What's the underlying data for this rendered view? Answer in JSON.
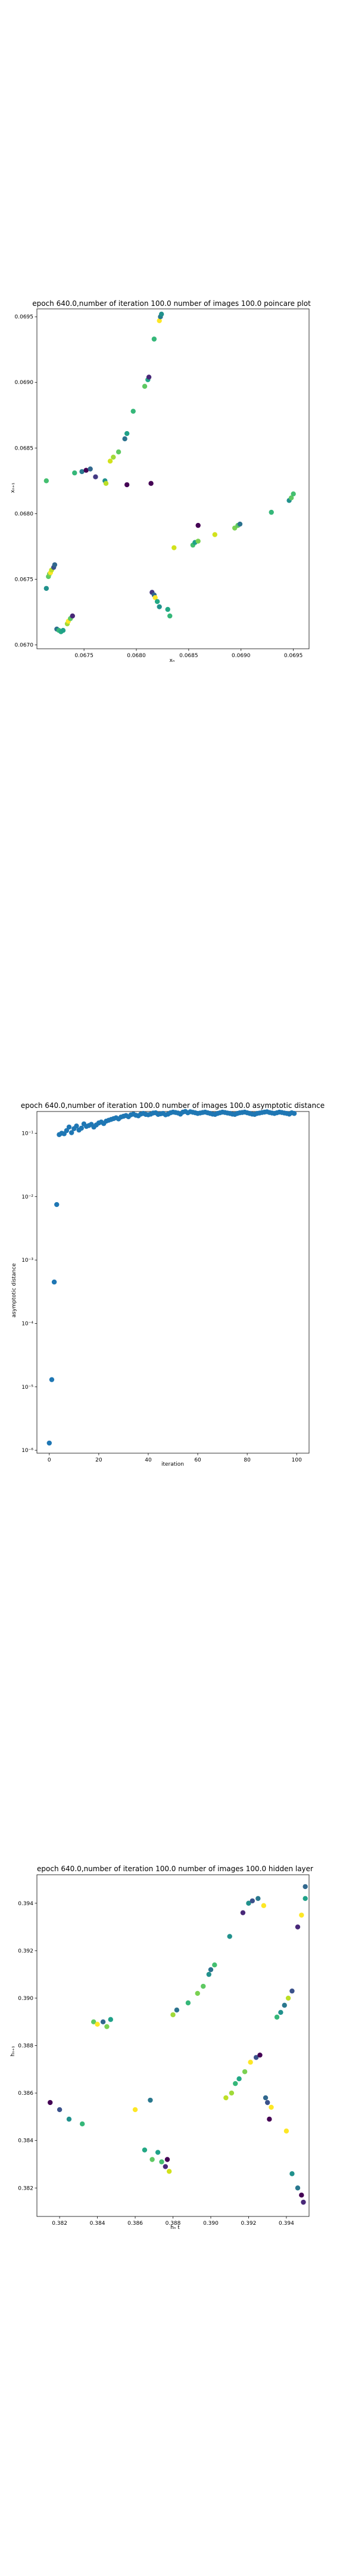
{
  "chart_data": [
    {
      "type": "scatter",
      "title": "epoch 640.0,number of iteration 100.0 number of images 100.0 poincare plot",
      "xlabel": "xₙ",
      "ylabel": "xₙ₊₁",
      "xlim": [
        0.06705,
        0.06965
      ],
      "ylim": [
        0.06697,
        0.06956
      ],
      "xticks": [
        {
          "v": 0.0675,
          "label": "0.0675"
        },
        {
          "v": 0.068,
          "label": "0.0680"
        },
        {
          "v": 0.0685,
          "label": "0.0685"
        },
        {
          "v": 0.069,
          "label": "0.0690"
        },
        {
          "v": 0.0695,
          "label": "0.0695"
        }
      ],
      "yticks": [
        {
          "v": 0.067,
          "label": "0.0670"
        },
        {
          "v": 0.0675,
          "label": "0.0675"
        },
        {
          "v": 0.068,
          "label": "0.0680"
        },
        {
          "v": 0.0685,
          "label": "0.0685"
        },
        {
          "v": 0.069,
          "label": "0.0690"
        },
        {
          "v": 0.0695,
          "label": "0.0695"
        }
      ],
      "points": [
        {
          "x": 0.06714,
          "y": 0.06825,
          "c": "#44bf70"
        },
        {
          "x": 0.06714,
          "y": 0.06743,
          "c": "#21918c"
        },
        {
          "x": 0.06716,
          "y": 0.06752,
          "c": "#5ec962"
        },
        {
          "x": 0.06717,
          "y": 0.06754,
          "c": "#7ad151"
        },
        {
          "x": 0.06718,
          "y": 0.06755,
          "c": "#fde725"
        },
        {
          "x": 0.06719,
          "y": 0.06757,
          "c": "#bddf26"
        },
        {
          "x": 0.06721,
          "y": 0.06759,
          "c": "#3b528b"
        },
        {
          "x": 0.06722,
          "y": 0.06761,
          "c": "#31688e"
        },
        {
          "x": 0.06724,
          "y": 0.06712,
          "c": "#2c728e"
        },
        {
          "x": 0.06726,
          "y": 0.06711,
          "c": "#35b779"
        },
        {
          "x": 0.06728,
          "y": 0.0671,
          "c": "#22a884"
        },
        {
          "x": 0.0673,
          "y": 0.06711,
          "c": "#1fa188"
        },
        {
          "x": 0.06734,
          "y": 0.06716,
          "c": "#a0da39"
        },
        {
          "x": 0.06735,
          "y": 0.06718,
          "c": "#fde725"
        },
        {
          "x": 0.06737,
          "y": 0.0672,
          "c": "#5ec962"
        },
        {
          "x": 0.06739,
          "y": 0.06722,
          "c": "#482878"
        },
        {
          "x": 0.06741,
          "y": 0.06831,
          "c": "#35b779"
        },
        {
          "x": 0.06748,
          "y": 0.06832,
          "c": "#2a788e"
        },
        {
          "x": 0.06752,
          "y": 0.06833,
          "c": "#440154"
        },
        {
          "x": 0.06756,
          "y": 0.06834,
          "c": "#31688e"
        },
        {
          "x": 0.06761,
          "y": 0.06828,
          "c": "#443983"
        },
        {
          "x": 0.0677,
          "y": 0.06825,
          "c": "#21918c"
        },
        {
          "x": 0.06771,
          "y": 0.06823,
          "c": "#bddf26"
        },
        {
          "x": 0.06775,
          "y": 0.0684,
          "c": "#d2e21b"
        },
        {
          "x": 0.06778,
          "y": 0.06843,
          "c": "#a0da39"
        },
        {
          "x": 0.06783,
          "y": 0.06847,
          "c": "#5ec962"
        },
        {
          "x": 0.06789,
          "y": 0.06857,
          "c": "#2c728e"
        },
        {
          "x": 0.06791,
          "y": 0.06861,
          "c": "#1fa188"
        },
        {
          "x": 0.06791,
          "y": 0.06822,
          "c": "#440154"
        },
        {
          "x": 0.06797,
          "y": 0.06878,
          "c": "#35b779"
        },
        {
          "x": 0.06808,
          "y": 0.06897,
          "c": "#5ec962"
        },
        {
          "x": 0.06811,
          "y": 0.06902,
          "c": "#22a884"
        },
        {
          "x": 0.06812,
          "y": 0.06904,
          "c": "#482878"
        },
        {
          "x": 0.06814,
          "y": 0.06823,
          "c": "#440154"
        },
        {
          "x": 0.06817,
          "y": 0.06933,
          "c": "#35b779"
        },
        {
          "x": 0.06822,
          "y": 0.06947,
          "c": "#fde725"
        },
        {
          "x": 0.06823,
          "y": 0.0695,
          "c": "#2a788e"
        },
        {
          "x": 0.06824,
          "y": 0.06952,
          "c": "#21918c"
        },
        {
          "x": 0.06815,
          "y": 0.0674,
          "c": "#443983"
        },
        {
          "x": 0.06817,
          "y": 0.06738,
          "c": "#31688e"
        },
        {
          "x": 0.06818,
          "y": 0.06736,
          "c": "#fde725"
        },
        {
          "x": 0.0682,
          "y": 0.06733,
          "c": "#22a884"
        },
        {
          "x": 0.06822,
          "y": 0.06729,
          "c": "#21918c"
        },
        {
          "x": 0.0683,
          "y": 0.06727,
          "c": "#22a884"
        },
        {
          "x": 0.06832,
          "y": 0.06722,
          "c": "#35b779"
        },
        {
          "x": 0.06836,
          "y": 0.06774,
          "c": "#d2e21b"
        },
        {
          "x": 0.06854,
          "y": 0.06776,
          "c": "#44bf70"
        },
        {
          "x": 0.06856,
          "y": 0.06778,
          "c": "#1fa188"
        },
        {
          "x": 0.06859,
          "y": 0.06779,
          "c": "#7ad151"
        },
        {
          "x": 0.06859,
          "y": 0.06791,
          "c": "#440154"
        },
        {
          "x": 0.06875,
          "y": 0.06784,
          "c": "#d2e21b"
        },
        {
          "x": 0.06894,
          "y": 0.06789,
          "c": "#7ad151"
        },
        {
          "x": 0.06897,
          "y": 0.06791,
          "c": "#5ec962"
        },
        {
          "x": 0.06899,
          "y": 0.06792,
          "c": "#2c728e"
        },
        {
          "x": 0.06929,
          "y": 0.06801,
          "c": "#35b779"
        },
        {
          "x": 0.06946,
          "y": 0.0681,
          "c": "#21918c"
        },
        {
          "x": 0.06948,
          "y": 0.06812,
          "c": "#5ec962"
        },
        {
          "x": 0.0695,
          "y": 0.06815,
          "c": "#44bf70"
        }
      ]
    },
    {
      "type": "scatter",
      "title": "epoch 640.0,number of iteration 100.0  number of images 100.0 asymptotic distance",
      "xlabel": "iteration",
      "ylabel": "asymptotic distance",
      "xscale": "linear",
      "yscale": "log",
      "xlim": [
        -5,
        105
      ],
      "ylim": [
        9e-07,
        0.22
      ],
      "color": "#1f77b4",
      "xticks": [
        {
          "v": 0,
          "label": "0"
        },
        {
          "v": 20,
          "label": "20"
        },
        {
          "v": 40,
          "label": "40"
        },
        {
          "v": 60,
          "label": "60"
        },
        {
          "v": 80,
          "label": "80"
        },
        {
          "v": 100,
          "label": "100"
        }
      ],
      "yticks": [
        {
          "v": 1e-06,
          "label": "10⁻⁶"
        },
        {
          "v": 1e-05,
          "label": "10⁻⁵"
        },
        {
          "v": 0.0001,
          "label": "10⁻⁴"
        },
        {
          "v": 0.001,
          "label": "10⁻³"
        },
        {
          "v": 0.01,
          "label": "10⁻²"
        },
        {
          "v": 0.1,
          "label": "10⁻¹"
        }
      ],
      "x": [
        0,
        1,
        2,
        3,
        4,
        5,
        6,
        7,
        8,
        9,
        10,
        11,
        12,
        13,
        14,
        15,
        16,
        17,
        18,
        19,
        20,
        21,
        22,
        23,
        24,
        25,
        26,
        27,
        28,
        29,
        30,
        31,
        32,
        33,
        34,
        35,
        36,
        37,
        38,
        39,
        40,
        41,
        42,
        43,
        44,
        45,
        46,
        47,
        48,
        49,
        50,
        51,
        52,
        53,
        54,
        55,
        56,
        57,
        58,
        59,
        60,
        61,
        62,
        63,
        64,
        65,
        66,
        67,
        68,
        69,
        70,
        71,
        72,
        73,
        74,
        75,
        76,
        77,
        78,
        79,
        80,
        81,
        82,
        83,
        84,
        85,
        86,
        87,
        88,
        89,
        90,
        91,
        92,
        93,
        94,
        95,
        96,
        97,
        98,
        99
      ],
      "y": [
        1.3e-06,
        1.3e-05,
        0.00045,
        0.0075,
        0.095,
        0.1,
        0.098,
        0.11,
        0.125,
        0.102,
        0.118,
        0.13,
        0.112,
        0.12,
        0.14,
        0.128,
        0.132,
        0.138,
        0.125,
        0.135,
        0.145,
        0.15,
        0.142,
        0.155,
        0.16,
        0.165,
        0.17,
        0.175,
        0.168,
        0.18,
        0.185,
        0.19,
        0.182,
        0.195,
        0.2,
        0.192,
        0.188,
        0.2,
        0.205,
        0.198,
        0.195,
        0.2,
        0.208,
        0.21,
        0.198,
        0.202,
        0.205,
        0.195,
        0.2,
        0.21,
        0.215,
        0.212,
        0.208,
        0.2,
        0.215,
        0.22,
        0.21,
        0.218,
        0.214,
        0.21,
        0.205,
        0.208,
        0.212,
        0.215,
        0.21,
        0.205,
        0.2,
        0.198,
        0.205,
        0.21,
        0.215,
        0.212,
        0.208,
        0.205,
        0.2,
        0.198,
        0.205,
        0.21,
        0.212,
        0.215,
        0.21,
        0.205,
        0.2,
        0.198,
        0.205,
        0.208,
        0.212,
        0.215,
        0.218,
        0.212,
        0.208,
        0.205,
        0.21,
        0.215,
        0.212,
        0.208,
        0.205,
        0.2,
        0.21,
        0.205
      ]
    },
    {
      "type": "scatter",
      "title": "epoch 640.0,number of iteration 100.0  number of images 100.0 hidden layer",
      "xlabel": "hₙ t",
      "ylabel": "hₙ₊₁",
      "xlim": [
        0.3808,
        0.3952
      ],
      "ylim": [
        0.3808,
        0.3952
      ],
      "xticks": [
        {
          "v": 0.382,
          "label": "0.382"
        },
        {
          "v": 0.384,
          "label": "0.384"
        },
        {
          "v": 0.386,
          "label": "0.386"
        },
        {
          "v": 0.388,
          "label": "0.388"
        },
        {
          "v": 0.39,
          "label": "0.390"
        },
        {
          "v": 0.392,
          "label": "0.392"
        },
        {
          "v": 0.394,
          "label": "0.394"
        }
      ],
      "yticks": [
        {
          "v": 0.382,
          "label": "0.382"
        },
        {
          "v": 0.384,
          "label": "0.384"
        },
        {
          "v": 0.386,
          "label": "0.386"
        },
        {
          "v": 0.388,
          "label": "0.388"
        },
        {
          "v": 0.39,
          "label": "0.390"
        },
        {
          "v": 0.392,
          "label": "0.392"
        },
        {
          "v": 0.394,
          "label": "0.394"
        }
      ],
      "points": [
        {
          "x": 0.3815,
          "y": 0.3856,
          "c": "#440154"
        },
        {
          "x": 0.382,
          "y": 0.3853,
          "c": "#3b528b"
        },
        {
          "x": 0.3825,
          "y": 0.3849,
          "c": "#21918c"
        },
        {
          "x": 0.3832,
          "y": 0.3847,
          "c": "#35b779"
        },
        {
          "x": 0.3838,
          "y": 0.389,
          "c": "#5ec962"
        },
        {
          "x": 0.384,
          "y": 0.3889,
          "c": "#fde725"
        },
        {
          "x": 0.3843,
          "y": 0.389,
          "c": "#31688e"
        },
        {
          "x": 0.3845,
          "y": 0.3888,
          "c": "#7ad151"
        },
        {
          "x": 0.3847,
          "y": 0.3891,
          "c": "#1fa188"
        },
        {
          "x": 0.386,
          "y": 0.3853,
          "c": "#fde725"
        },
        {
          "x": 0.3865,
          "y": 0.3836,
          "c": "#22a884"
        },
        {
          "x": 0.3868,
          "y": 0.3857,
          "c": "#2a788e"
        },
        {
          "x": 0.3869,
          "y": 0.3832,
          "c": "#5ec962"
        },
        {
          "x": 0.3872,
          "y": 0.3835,
          "c": "#1fa188"
        },
        {
          "x": 0.3874,
          "y": 0.3831,
          "c": "#44bf70"
        },
        {
          "x": 0.3876,
          "y": 0.3829,
          "c": "#482878"
        },
        {
          "x": 0.3877,
          "y": 0.3832,
          "c": "#440154"
        },
        {
          "x": 0.3878,
          "y": 0.3827,
          "c": "#d2e21b"
        },
        {
          "x": 0.388,
          "y": 0.3893,
          "c": "#a0da39"
        },
        {
          "x": 0.3882,
          "y": 0.3895,
          "c": "#2c728e"
        },
        {
          "x": 0.3888,
          "y": 0.3898,
          "c": "#35b779"
        },
        {
          "x": 0.3893,
          "y": 0.3902,
          "c": "#7ad151"
        },
        {
          "x": 0.3896,
          "y": 0.3905,
          "c": "#5ec962"
        },
        {
          "x": 0.3899,
          "y": 0.391,
          "c": "#21918c"
        },
        {
          "x": 0.39,
          "y": 0.3912,
          "c": "#2c728e"
        },
        {
          "x": 0.3902,
          "y": 0.3914,
          "c": "#44bf70"
        },
        {
          "x": 0.391,
          "y": 0.3926,
          "c": "#21918c"
        },
        {
          "x": 0.3917,
          "y": 0.3936,
          "c": "#482878"
        },
        {
          "x": 0.392,
          "y": 0.394,
          "c": "#21918c"
        },
        {
          "x": 0.3922,
          "y": 0.3941,
          "c": "#3b528b"
        },
        {
          "x": 0.3925,
          "y": 0.3942,
          "c": "#2a788e"
        },
        {
          "x": 0.3928,
          "y": 0.3939,
          "c": "#fde725"
        },
        {
          "x": 0.3908,
          "y": 0.3858,
          "c": "#bddf26"
        },
        {
          "x": 0.3911,
          "y": 0.386,
          "c": "#a0da39"
        },
        {
          "x": 0.3913,
          "y": 0.3864,
          "c": "#35b779"
        },
        {
          "x": 0.3915,
          "y": 0.3866,
          "c": "#22a884"
        },
        {
          "x": 0.3918,
          "y": 0.3869,
          "c": "#7ad151"
        },
        {
          "x": 0.3921,
          "y": 0.3873,
          "c": "#fde725"
        },
        {
          "x": 0.3924,
          "y": 0.3875,
          "c": "#3b528b"
        },
        {
          "x": 0.3926,
          "y": 0.3876,
          "c": "#440154"
        },
        {
          "x": 0.3931,
          "y": 0.3849,
          "c": "#440154"
        },
        {
          "x": 0.3935,
          "y": 0.3892,
          "c": "#35b779"
        },
        {
          "x": 0.3937,
          "y": 0.3894,
          "c": "#21918c"
        },
        {
          "x": 0.3939,
          "y": 0.3897,
          "c": "#2a788e"
        },
        {
          "x": 0.3941,
          "y": 0.39,
          "c": "#bddf26"
        },
        {
          "x": 0.3943,
          "y": 0.3903,
          "c": "#3b528b"
        },
        {
          "x": 0.3929,
          "y": 0.3858,
          "c": "#31688e"
        },
        {
          "x": 0.393,
          "y": 0.3856,
          "c": "#3b528b"
        },
        {
          "x": 0.3932,
          "y": 0.3854,
          "c": "#fde725"
        },
        {
          "x": 0.394,
          "y": 0.3844,
          "c": "#fde725"
        },
        {
          "x": 0.3943,
          "y": 0.3826,
          "c": "#21918c"
        },
        {
          "x": 0.3946,
          "y": 0.382,
          "c": "#2a788e"
        },
        {
          "x": 0.3948,
          "y": 0.3817,
          "c": "#440154"
        },
        {
          "x": 0.3949,
          "y": 0.3814,
          "c": "#482878"
        },
        {
          "x": 0.395,
          "y": 0.3947,
          "c": "#31688e"
        },
        {
          "x": 0.395,
          "y": 0.3942,
          "c": "#1fa188"
        },
        {
          "x": 0.3948,
          "y": 0.3935,
          "c": "#fde725"
        },
        {
          "x": 0.3946,
          "y": 0.393,
          "c": "#482878"
        }
      ]
    }
  ]
}
